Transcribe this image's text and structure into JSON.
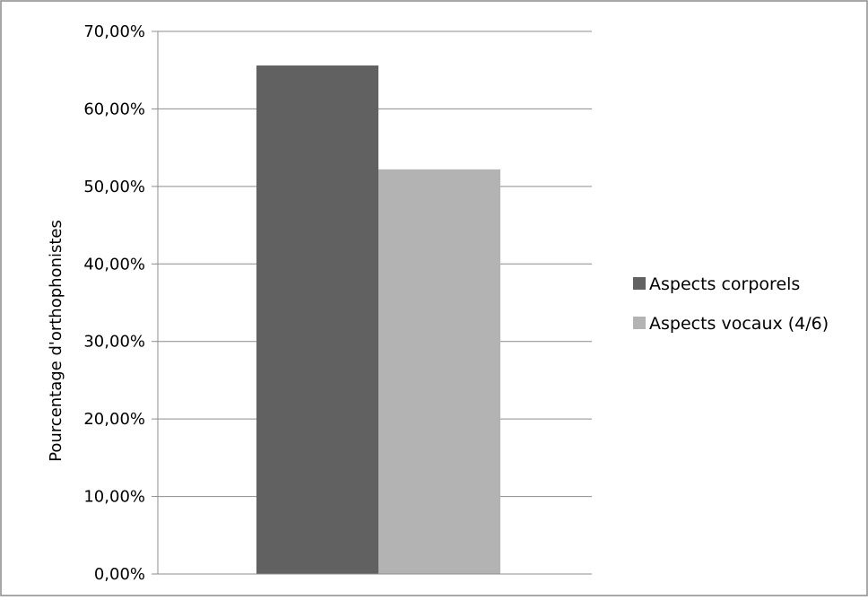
{
  "chart_data": {
    "type": "bar",
    "categories": [
      ""
    ],
    "series": [
      {
        "name": "Aspects corporels",
        "values": [
          65.6
        ],
        "color": "#616161"
      },
      {
        "name": "Aspects vocaux (4/6)",
        "values": [
          52.2
        ],
        "color": "#b3b3b3"
      }
    ],
    "ylabel": "Pourcentage d'orthophonistes",
    "ylim": [
      0,
      70
    ],
    "ytick_values": [
      0,
      10,
      20,
      30,
      40,
      50,
      60,
      70
    ],
    "ytick_labels": [
      "0,00%",
      "10,00%",
      "20,00%",
      "30,00%",
      "40,00%",
      "50,00%",
      "60,00%",
      "70,00%"
    ],
    "grid": true,
    "legend_position": "right"
  }
}
